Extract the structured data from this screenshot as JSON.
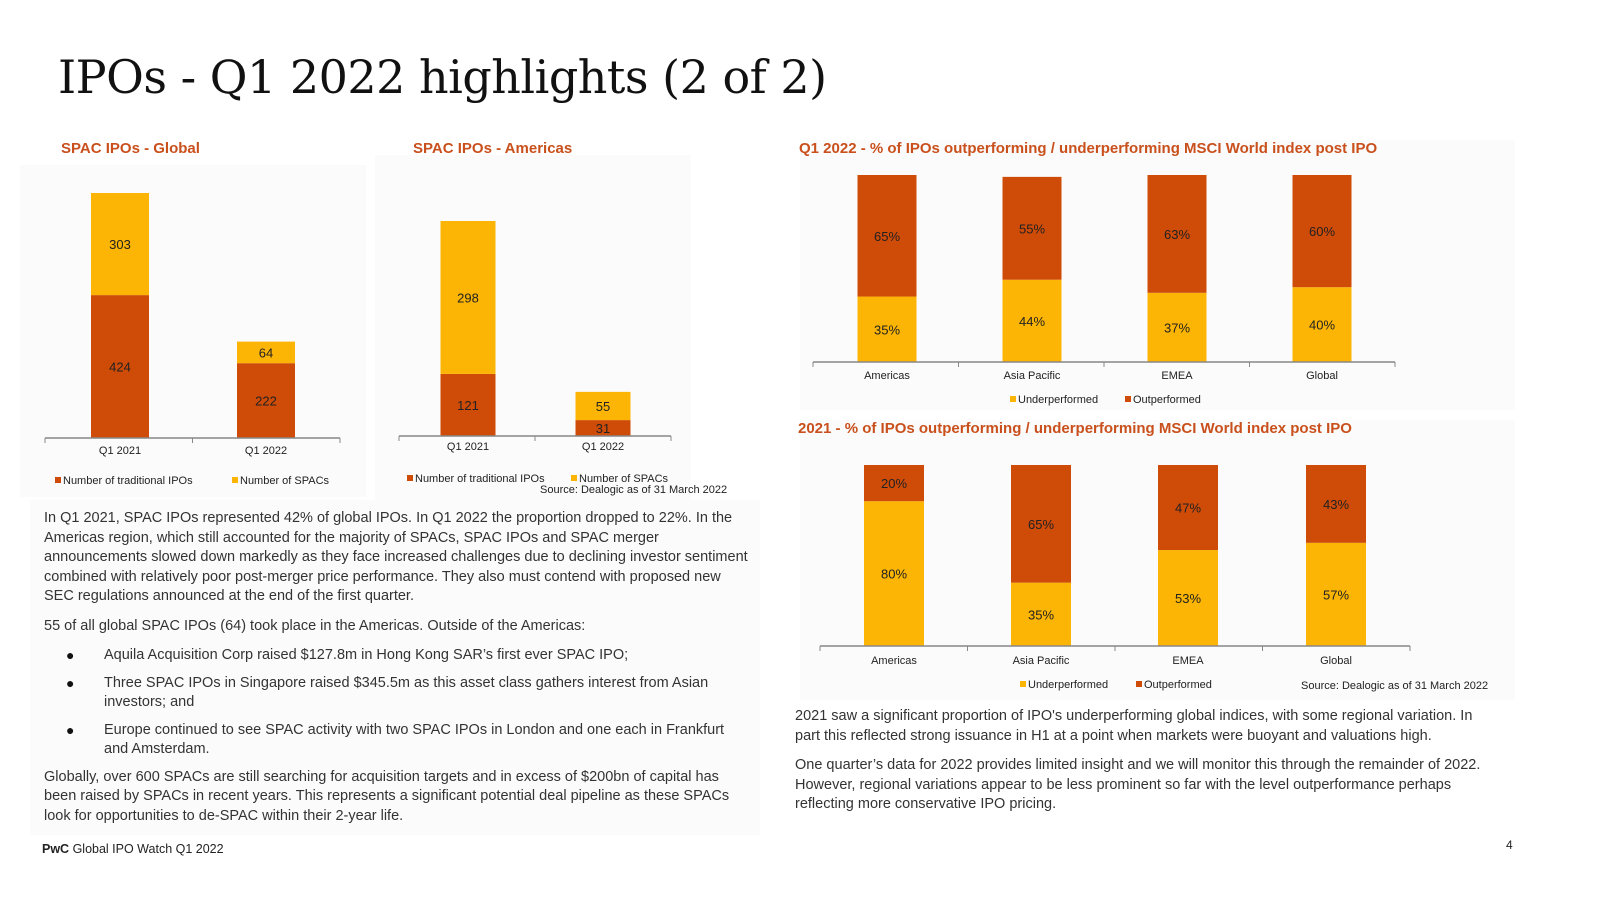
{
  "page": {
    "title": "IPOs - Q1 2022 highlights (2 of 2)",
    "footer_brand": "PwC",
    "footer_text": " Global IPO Watch Q1 2022",
    "page_number": "4"
  },
  "colors": {
    "orange": "#cf4b08",
    "yellow": "#fcb504",
    "title_orange": "#c9501c"
  },
  "sources": {
    "left": "Source: Dealogic as of 31 March 2022",
    "right": "Source: Dealogic as of 31 March 2022"
  },
  "chart_data": [
    {
      "type": "bar",
      "stacked": true,
      "title": "SPAC IPOs - Global",
      "categories": [
        "Q1 2021",
        "Q1 2022"
      ],
      "series": [
        {
          "name": "Number of traditional IPOs",
          "color": "#cf4b08",
          "values": [
            424,
            222
          ]
        },
        {
          "name": "Number of SPACs",
          "color": "#fcb504",
          "values": [
            303,
            64
          ]
        }
      ],
      "legend": "bottom"
    },
    {
      "type": "bar",
      "stacked": true,
      "title": "SPAC IPOs - Americas",
      "categories": [
        "Q1 2021",
        "Q1 2022"
      ],
      "series": [
        {
          "name": "Number of traditional IPOs",
          "color": "#cf4b08",
          "values": [
            121,
            31
          ]
        },
        {
          "name": "Number of SPACs",
          "color": "#fcb504",
          "values": [
            298,
            55
          ]
        }
      ],
      "legend": "bottom"
    },
    {
      "type": "bar",
      "stacked": true,
      "percent": true,
      "title": "Q1 2022 - % of IPOs outperforming / underperforming MSCI World index post IPO",
      "categories": [
        "Americas",
        "Asia Pacific",
        "EMEA",
        "Global"
      ],
      "series": [
        {
          "name": "Underperformed",
          "color": "#fcb504",
          "values": [
            35,
            44,
            37,
            40
          ]
        },
        {
          "name": "Outperformed",
          "color": "#cf4b08",
          "values": [
            65,
            55,
            63,
            60
          ]
        }
      ],
      "legend": "bottom"
    },
    {
      "type": "bar",
      "stacked": true,
      "percent": true,
      "title": "2021 - % of IPOs outperforming / underperforming MSCI World index post IPO",
      "categories": [
        "Americas",
        "Asia Pacific",
        "EMEA",
        "Global"
      ],
      "series": [
        {
          "name": "Underperformed",
          "color": "#fcb504",
          "values": [
            80,
            35,
            53,
            57
          ]
        },
        {
          "name": "Outperformed",
          "color": "#cf4b08",
          "values": [
            20,
            65,
            47,
            43
          ]
        }
      ],
      "legend": "bottom"
    }
  ],
  "left_text": {
    "p1": "In Q1 2021, SPAC IPOs represented 42% of global IPOs. In Q1 2022 the proportion dropped to 22%. In the Americas region, which still accounted for the majority of SPACs, SPAC IPOs and SPAC merger announcements slowed down markedly as they face increased challenges due to declining investor sentiment combined with relatively poor post-merger price performance. They also must contend with proposed new SEC regulations announced at the end of the first quarter.",
    "p2": "55 of all global SPAC IPOs (64) took place in the Americas. Outside of the Americas:",
    "bullet_symbol": "●",
    "bullets": [
      "Aquila Acquisition Corp raised $127.8m in Hong Kong SAR’s first ever SPAC IPO;",
      "Three SPAC IPOs in Singapore raised $345.5m as this asset class gathers interest from Asian investors; and",
      "Europe continued to see SPAC activity with two SPAC IPOs in London and one each in Frankfurt and Amsterdam."
    ],
    "p3": "Globally, over 600 SPACs are still searching for acquisition targets and in excess of $200bn of capital has been raised by SPACs in recent years. This represents a significant potential deal pipeline as these SPACs look for opportunities to de-SPAC within their 2-year life."
  },
  "right_text": {
    "p1": "2021 saw a significant proportion of IPO's underperforming global indices, with some regional variation. In part this reflected strong issuance in H1 at a point when markets were buoyant and valuations high.",
    "p2": "One quarter’s data for 2022 provides limited insight and we will monitor this through the remainder of 2022. However, regional variations appear to be less prominent so far with the level outperformance perhaps reflecting more conservative IPO pricing."
  }
}
